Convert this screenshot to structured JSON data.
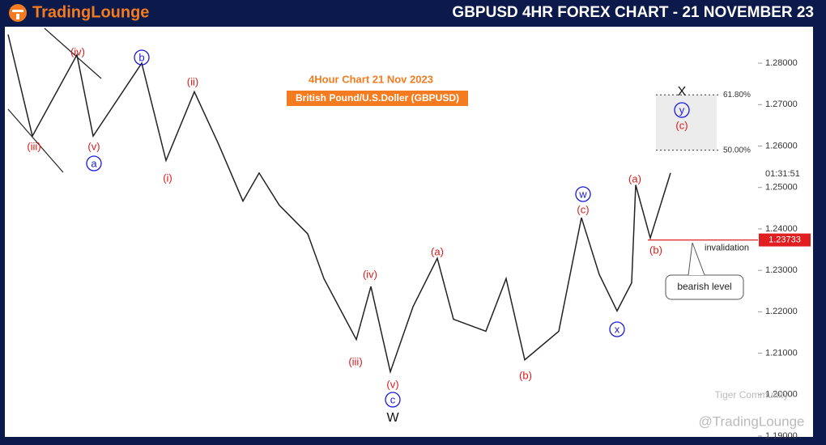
{
  "header": {
    "logo": "TradingLounge",
    "title": "GBPUSD 4HR FOREX CHART - 21 NOVEMBER 23"
  },
  "chart_data": {
    "type": "line",
    "subtitle": "4Hour Chart 21 Nov 2023",
    "instrument": "British Pound/U.S.Doller (GBPUSD)",
    "x": [
      0,
      30,
      85,
      105,
      165,
      195,
      230,
      260,
      290,
      310,
      335,
      370,
      390,
      430,
      448,
      472,
      500,
      530,
      550,
      590,
      615,
      638,
      680,
      708,
      730,
      752,
      770,
      775,
      793,
      818
    ],
    "values": [
      1.2869,
      1.2624,
      1.282,
      1.2624,
      1.28,
      1.2565,
      1.2731,
      1.2604,
      1.2467,
      1.2535,
      1.2457,
      1.2388,
      1.228,
      1.2133,
      1.2261,
      1.2055,
      1.2212,
      1.2329,
      1.2182,
      1.2153,
      1.228,
      1.2084,
      1.2153,
      1.2427,
      1.229,
      1.2202,
      1.227,
      1.2506,
      1.2378,
      1.2535
    ],
    "color": "#222222",
    "xlim": [
      0,
      925
    ],
    "ylim": [
      1.1898,
      1.2888
    ],
    "yticks": [
      {
        "value": 1.19,
        "label": "1.19000"
      },
      {
        "value": 1.2,
        "label": "1.20000"
      },
      {
        "value": 1.21,
        "label": "1.21000"
      },
      {
        "value": 1.22,
        "label": "1.22000"
      },
      {
        "value": 1.23,
        "label": "1.23000"
      },
      {
        "value": 1.24,
        "label": "1.24000"
      },
      {
        "value": 1.25,
        "label": "1.25000"
      },
      {
        "value": 1.26,
        "label": "1.26000"
      },
      {
        "value": 1.27,
        "label": "1.27000"
      },
      {
        "value": 1.28,
        "label": "1.28000"
      }
    ],
    "levels": [
      {
        "label": "61.80%",
        "value": 1.27235
      },
      {
        "label": "50.00%",
        "value": 1.259
      }
    ],
    "invalidation": {
      "value": 1.23733,
      "label": "1.23733",
      "text": "invalidation"
    },
    "callout": "bearish level",
    "countdown": "01:31:51",
    "wave_labels": [
      "(iv)",
      "(iii)",
      "(v)",
      "a",
      "b",
      "(ii)",
      "(i)",
      "(iv)",
      "(iii)",
      "(v)",
      "c",
      "W",
      "(a)",
      "(b)",
      "w",
      "(c)",
      "x",
      "(a)",
      "(b)",
      "X",
      "y",
      "(c)"
    ]
  },
  "watermark": [
    "Tiger Community",
    "@TradingLounge"
  ]
}
